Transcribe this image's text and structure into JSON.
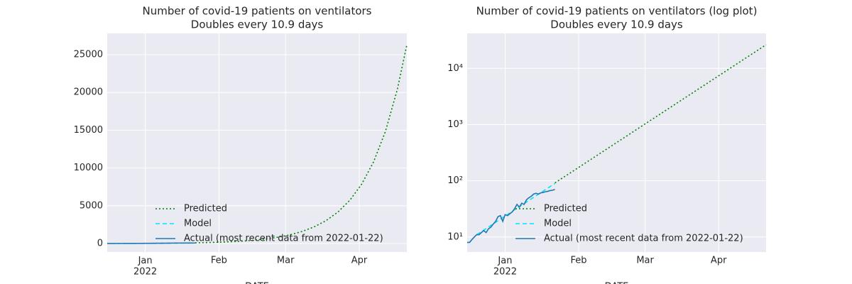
{
  "chart_data": [
    {
      "type": "line",
      "title": "Number of covid-19 patients on ventilators",
      "subtitle": "Doubles every 10.9 days",
      "xlabel": "DATE",
      "log_y": false,
      "grid": true,
      "legend": "lower left",
      "xlim": [
        "2021-12-16",
        "2022-04-21"
      ],
      "xticks": [
        {
          "value": "2022-01-01",
          "label": "Jan\n2022"
        },
        {
          "value": "2022-02-01",
          "label": "Feb"
        },
        {
          "value": "2022-03-01",
          "label": "Mar"
        },
        {
          "value": "2022-04-01",
          "label": "Apr"
        }
      ],
      "ylim": [
        -1128,
        27820
      ],
      "yticks": [
        0,
        5000,
        10000,
        15000,
        20000,
        25000
      ],
      "series": [
        {
          "name": "Predicted",
          "color": "#008000",
          "style": "dotted",
          "x": [
            "2022-01-22",
            "2022-01-27",
            "2022-02-01",
            "2022-02-06",
            "2022-02-11",
            "2022-02-16",
            "2022-02-21",
            "2022-02-26",
            "2022-03-03",
            "2022-03-08",
            "2022-03-13",
            "2022-03-18",
            "2022-03-23",
            "2022-03-28",
            "2022-04-02",
            "2022-04-07",
            "2022-04-12",
            "2022-04-17",
            "2022-04-21"
          ],
          "values": [
            92,
            126,
            173,
            238,
            327,
            449,
            617,
            848,
            1166,
            1602,
            2202,
            3026,
            4158,
            5715,
            7854,
            10794,
            14834,
            20387,
            26293
          ]
        },
        {
          "name": "Model",
          "color": "#00e5ff",
          "style": "dashed",
          "x": [
            "2021-12-20",
            "2021-12-25",
            "2021-12-30",
            "2022-01-04",
            "2022-01-09",
            "2022-01-14",
            "2022-01-19",
            "2022-01-22"
          ],
          "values": [
            11,
            15.1,
            20.8,
            28.6,
            39.3,
            54,
            74.2,
            89.8
          ]
        },
        {
          "name": "Actual (most recent data from 2022-01-22)",
          "color": "#1f77b4",
          "style": "solid",
          "x": [
            "2021-12-16",
            "2021-12-17",
            "2021-12-18",
            "2021-12-19",
            "2021-12-20",
            "2021-12-21",
            "2021-12-22",
            "2021-12-23",
            "2021-12-24",
            "2021-12-25",
            "2021-12-26",
            "2021-12-27",
            "2021-12-28",
            "2021-12-29",
            "2021-12-30",
            "2021-12-31",
            "2022-01-01",
            "2022-01-02",
            "2022-01-03",
            "2022-01-04",
            "2022-01-05",
            "2022-01-06",
            "2022-01-07",
            "2022-01-08",
            "2022-01-09",
            "2022-01-10",
            "2022-01-11",
            "2022-01-12",
            "2022-01-13",
            "2022-01-14",
            "2022-01-15",
            "2022-01-16",
            "2022-01-17",
            "2022-01-18",
            "2022-01-19",
            "2022-01-20",
            "2022-01-21",
            "2022-01-22"
          ],
          "values": [
            8,
            8,
            9,
            10,
            11,
            11,
            12,
            13,
            12,
            14,
            15,
            17,
            19,
            23,
            24,
            19,
            25,
            24,
            26,
            28,
            32,
            38,
            34,
            40,
            38,
            46,
            50,
            53,
            58,
            60,
            58,
            61,
            62,
            64,
            65,
            67,
            68,
            70
          ]
        }
      ]
    },
    {
      "type": "line",
      "title": "Number of covid-19 patients on ventilators (log plot)",
      "subtitle": "Doubles every 10.9 days",
      "xlabel": "DATE",
      "log_y": true,
      "grid": true,
      "legend": "lower left",
      "xlim": [
        "2021-12-16",
        "2022-04-21"
      ],
      "xticks": [
        {
          "value": "2022-01-01",
          "label": "Jan\n2022"
        },
        {
          "value": "2022-02-01",
          "label": "Feb"
        },
        {
          "value": "2022-03-01",
          "label": "Mar"
        },
        {
          "value": "2022-04-01",
          "label": "Apr"
        }
      ],
      "ylim": [
        5.4,
        41900
      ],
      "yticks": [
        {
          "value": 10,
          "label": "10¹"
        },
        {
          "value": 100,
          "label": "10²"
        },
        {
          "value": 1000,
          "label": "10³"
        },
        {
          "value": 10000,
          "label": "10⁴"
        }
      ],
      "series": [
        {
          "name": "Predicted",
          "color": "#008000",
          "style": "dotted",
          "x": [
            "2022-01-22",
            "2022-01-27",
            "2022-02-01",
            "2022-02-06",
            "2022-02-11",
            "2022-02-16",
            "2022-02-21",
            "2022-02-26",
            "2022-03-03",
            "2022-03-08",
            "2022-03-13",
            "2022-03-18",
            "2022-03-23",
            "2022-03-28",
            "2022-04-02",
            "2022-04-07",
            "2022-04-12",
            "2022-04-17",
            "2022-04-21"
          ],
          "values": [
            92,
            126,
            173,
            238,
            327,
            449,
            617,
            848,
            1166,
            1602,
            2202,
            3026,
            4158,
            5715,
            7854,
            10794,
            14834,
            20387,
            26293
          ]
        },
        {
          "name": "Model",
          "color": "#00e5ff",
          "style": "dashed",
          "x": [
            "2021-12-20",
            "2021-12-25",
            "2021-12-30",
            "2022-01-04",
            "2022-01-09",
            "2022-01-14",
            "2022-01-19",
            "2022-01-22"
          ],
          "values": [
            11,
            15.1,
            20.8,
            28.6,
            39.3,
            54,
            74.2,
            89.8
          ]
        },
        {
          "name": "Actual (most recent data from 2022-01-22)",
          "color": "#1f77b4",
          "style": "solid",
          "x": [
            "2021-12-16",
            "2021-12-17",
            "2021-12-18",
            "2021-12-19",
            "2021-12-20",
            "2021-12-21",
            "2021-12-22",
            "2021-12-23",
            "2021-12-24",
            "2021-12-25",
            "2021-12-26",
            "2021-12-27",
            "2021-12-28",
            "2021-12-29",
            "2021-12-30",
            "2021-12-31",
            "2022-01-01",
            "2022-01-02",
            "2022-01-03",
            "2022-01-04",
            "2022-01-05",
            "2022-01-06",
            "2022-01-07",
            "2022-01-08",
            "2022-01-09",
            "2022-01-10",
            "2022-01-11",
            "2022-01-12",
            "2022-01-13",
            "2022-01-14",
            "2022-01-15",
            "2022-01-16",
            "2022-01-17",
            "2022-01-18",
            "2022-01-19",
            "2022-01-20",
            "2022-01-21",
            "2022-01-22"
          ],
          "values": [
            8,
            8,
            9,
            10,
            11,
            11,
            12,
            13,
            12,
            14,
            15,
            17,
            19,
            23,
            24,
            19,
            25,
            24,
            26,
            28,
            32,
            38,
            34,
            40,
            38,
            46,
            50,
            53,
            58,
            60,
            58,
            61,
            62,
            64,
            65,
            67,
            68,
            70
          ]
        }
      ]
    }
  ]
}
